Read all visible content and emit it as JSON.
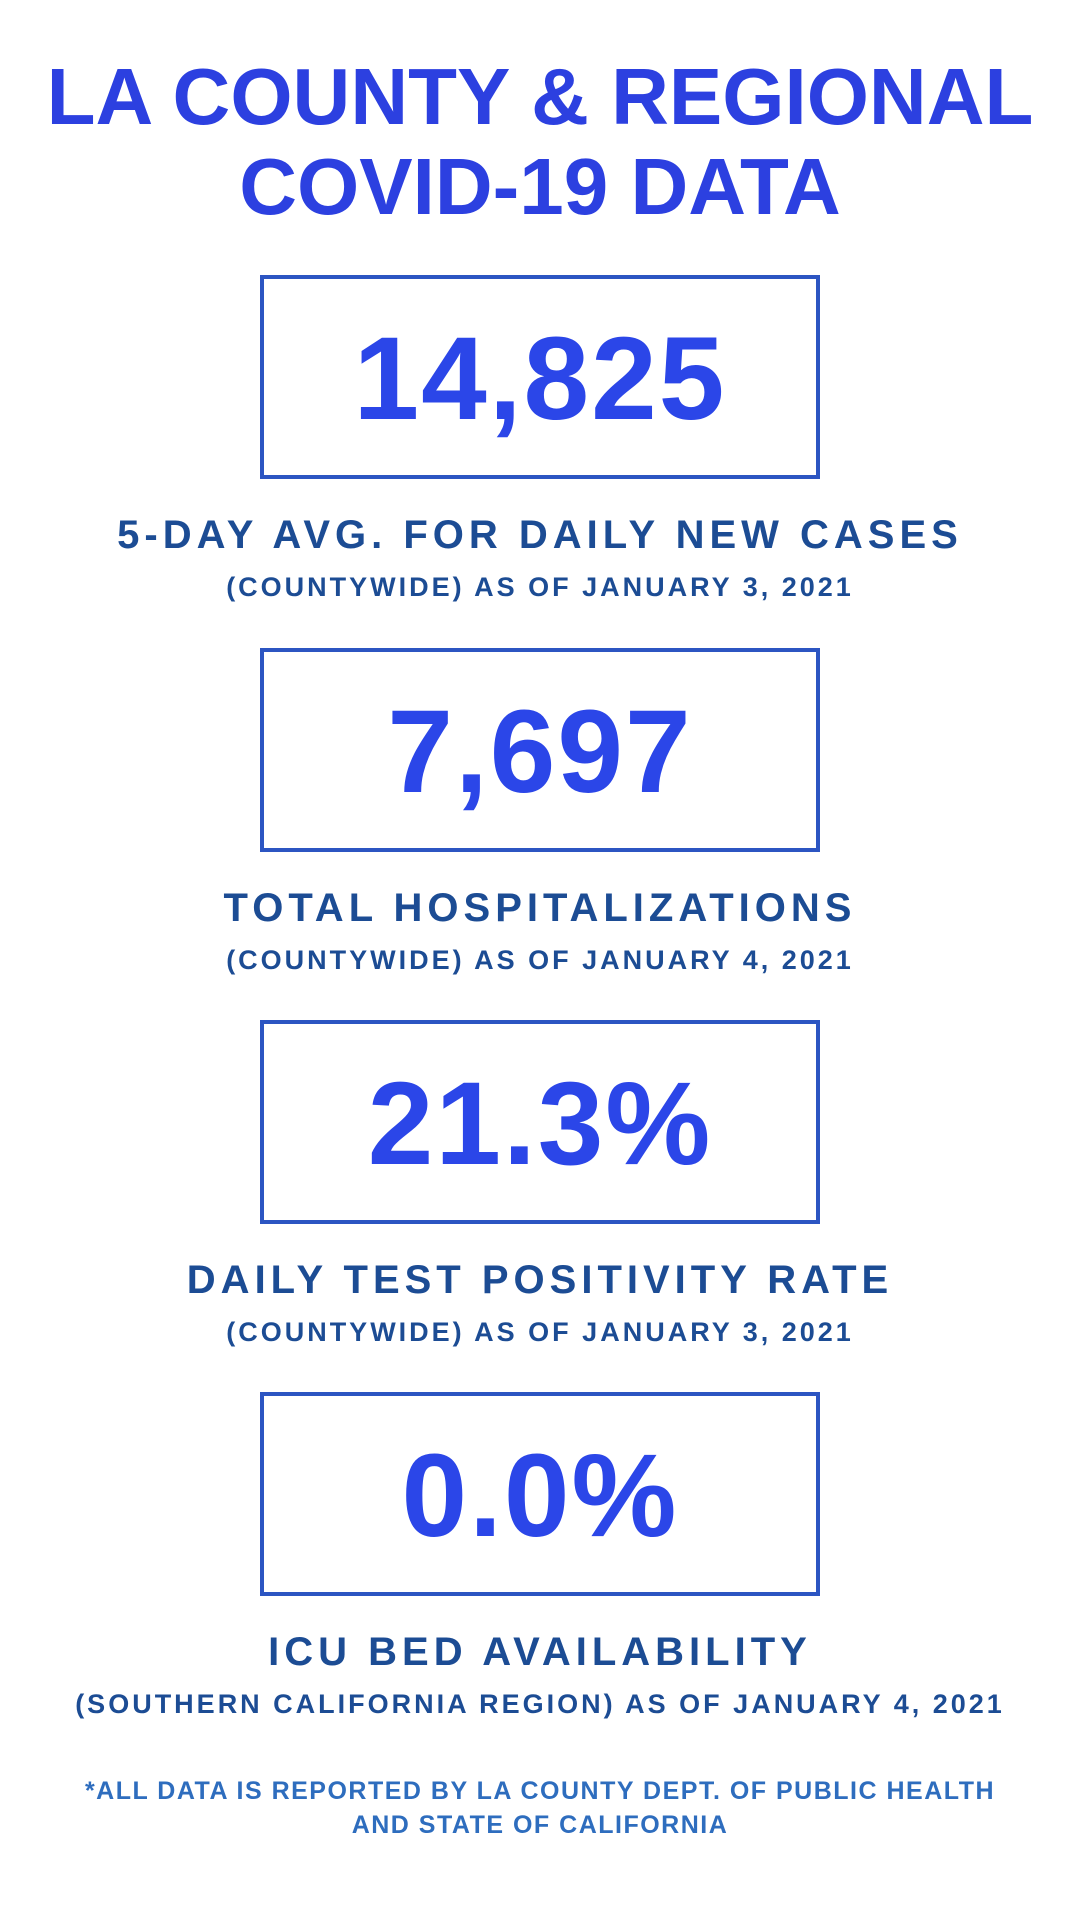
{
  "title": {
    "line1": "LA COUNTY & REGIONAL",
    "line2": "COVID-19 DATA"
  },
  "stats": [
    {
      "value": "14,825",
      "label": "5-DAY AVG. FOR DAILY NEW CASES",
      "sublabel": "(COUNTYWIDE) AS OF JANUARY 3, 2021"
    },
    {
      "value": "7,697",
      "label": "TOTAL HOSPITALIZATIONS",
      "sublabel": "(COUNTYWIDE) AS OF JANUARY 4, 2021"
    },
    {
      "value": "21.3%",
      "label": "DAILY TEST POSITIVITY RATE",
      "sublabel": "(COUNTYWIDE) AS OF JANUARY 3, 2021"
    },
    {
      "value": "0.0%",
      "label": "ICU BED AVAILABILITY",
      "sublabel": "(SOUTHERN CALIFORNIA REGION) AS OF JANUARY 4, 2021"
    }
  ],
  "footer": {
    "line1": "*ALL DATA IS REPORTED BY LA COUNTY DEPT. OF PUBLIC HEALTH",
    "line2": "AND STATE OF CALIFORNIA"
  },
  "colors": {
    "title_blue": "#2c40e0",
    "number_blue": "#2b46e8",
    "box_border_blue": "#2c55c2",
    "label_navy": "#1c4c94",
    "footer_blue": "#2e6dbe",
    "background": "#ffffff"
  }
}
